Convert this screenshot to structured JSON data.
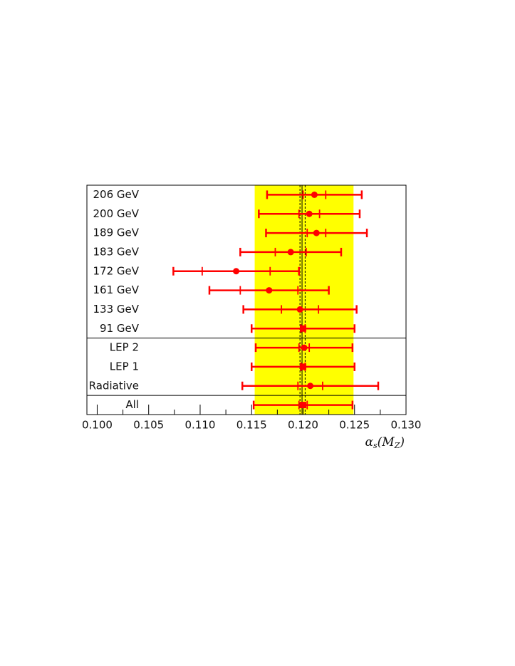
{
  "chart_data": {
    "type": "forest",
    "x_label_parts": [
      "α",
      "s",
      "(",
      "M",
      "Z",
      ")"
    ],
    "xlim": [
      0.099,
      0.13
    ],
    "xticks": [
      {
        "value": 0.1,
        "label": "0.100"
      },
      {
        "value": 0.105,
        "label": "0.105"
      },
      {
        "value": 0.11,
        "label": "0.110"
      },
      {
        "value": 0.115,
        "label": "0.115"
      },
      {
        "value": 0.12,
        "label": "0.120"
      },
      {
        "value": 0.125,
        "label": "0.125"
      },
      {
        "value": 0.13,
        "label": "0.130"
      }
    ],
    "minor_xticks": [
      0.1025,
      0.1075,
      0.1125,
      0.1175,
      0.1225,
      0.1275
    ],
    "band": [
      0.1153,
      0.1249
    ],
    "band_color": "#ffff00",
    "central": 0.1199,
    "dashed": [
      0.1197,
      0.1202
    ],
    "color": "#ff0000",
    "groups": [
      {
        "rows": [
          {
            "label": "206 GeV",
            "value": 0.1211,
            "stat_error": 0.0011,
            "total_error": 0.0046,
            "marker": "circle"
          },
          {
            "label": "200 GeV",
            "value": 0.1206,
            "stat_error": 0.001,
            "total_error": 0.0049,
            "marker": "circle"
          },
          {
            "label": "189 GeV",
            "value": 0.1213,
            "stat_error": 0.0009,
            "total_error": 0.0049,
            "marker": "circle"
          },
          {
            "label": "183 GeV",
            "value": 0.1188,
            "stat_error": 0.0015,
            "total_error": 0.0049,
            "marker": "circle"
          },
          {
            "label": "172 GeV",
            "value": 0.1135,
            "stat_error": 0.0033,
            "total_error": 0.0061,
            "marker": "circle"
          },
          {
            "label": "161 GeV",
            "value": 0.1167,
            "stat_error": 0.0028,
            "total_error": 0.0058,
            "marker": "circle"
          },
          {
            "label": "133 GeV",
            "value": 0.1197,
            "stat_error": 0.0018,
            "total_error": 0.0055,
            "marker": "circle"
          },
          {
            "label": "91 GeV",
            "value": 0.12,
            "stat_error": 0.0002,
            "total_error": 0.005,
            "marker": "square"
          }
        ]
      },
      {
        "rows": [
          {
            "label": "LEP 2",
            "value": 0.1201,
            "stat_error": 0.0005,
            "total_error": 0.0047,
            "marker": "circle"
          },
          {
            "label": "LEP 1",
            "value": 0.12,
            "stat_error": 0.0002,
            "total_error": 0.005,
            "marker": "square"
          },
          {
            "label": "Radiative",
            "value": 0.1207,
            "stat_error": 0.0012,
            "total_error": 0.0066,
            "marker": "circle"
          }
        ]
      },
      {
        "rows": [
          {
            "label": "All",
            "value": 0.12,
            "stat_error": 0.0004,
            "total_error": 0.0048,
            "marker": "square"
          }
        ]
      }
    ]
  }
}
